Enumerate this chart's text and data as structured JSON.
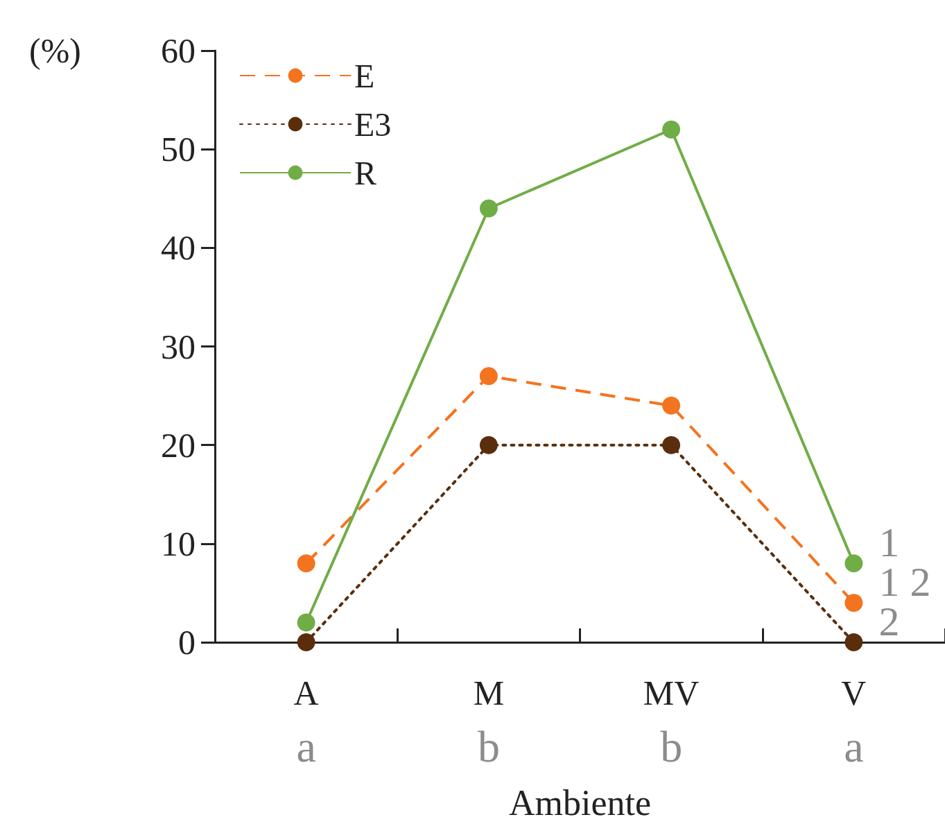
{
  "chart_data": {
    "type": "line",
    "ylabel": "(%)",
    "xlabel": "Ambiente",
    "categories": [
      "A",
      "M",
      "MV",
      "V"
    ],
    "series": [
      {
        "name": "E",
        "color": "#f4731f",
        "values": [
          8,
          27,
          24,
          4
        ],
        "line_style": "dashed"
      },
      {
        "name": "E3",
        "color": "#5a2d0c",
        "values": [
          0,
          20,
          20,
          0
        ],
        "line_style": "dotted"
      },
      {
        "name": "R",
        "color": "#70ad47",
        "values": [
          2,
          44,
          52,
          8
        ],
        "line_style": "solid"
      }
    ],
    "ylim": [
      0,
      60
    ],
    "yticks": [
      0,
      10,
      20,
      30,
      40,
      50,
      60
    ],
    "marker": "circle",
    "legend": "top left",
    "grid": false,
    "annotations": [
      {
        "text": "1",
        "x": "V",
        "y": 8
      },
      {
        "text": "1 2",
        "x": "V",
        "y": 4
      },
      {
        "text": "2",
        "x": "V",
        "y": 0
      },
      "a",
      "b",
      "b",
      "a"
    ]
  }
}
